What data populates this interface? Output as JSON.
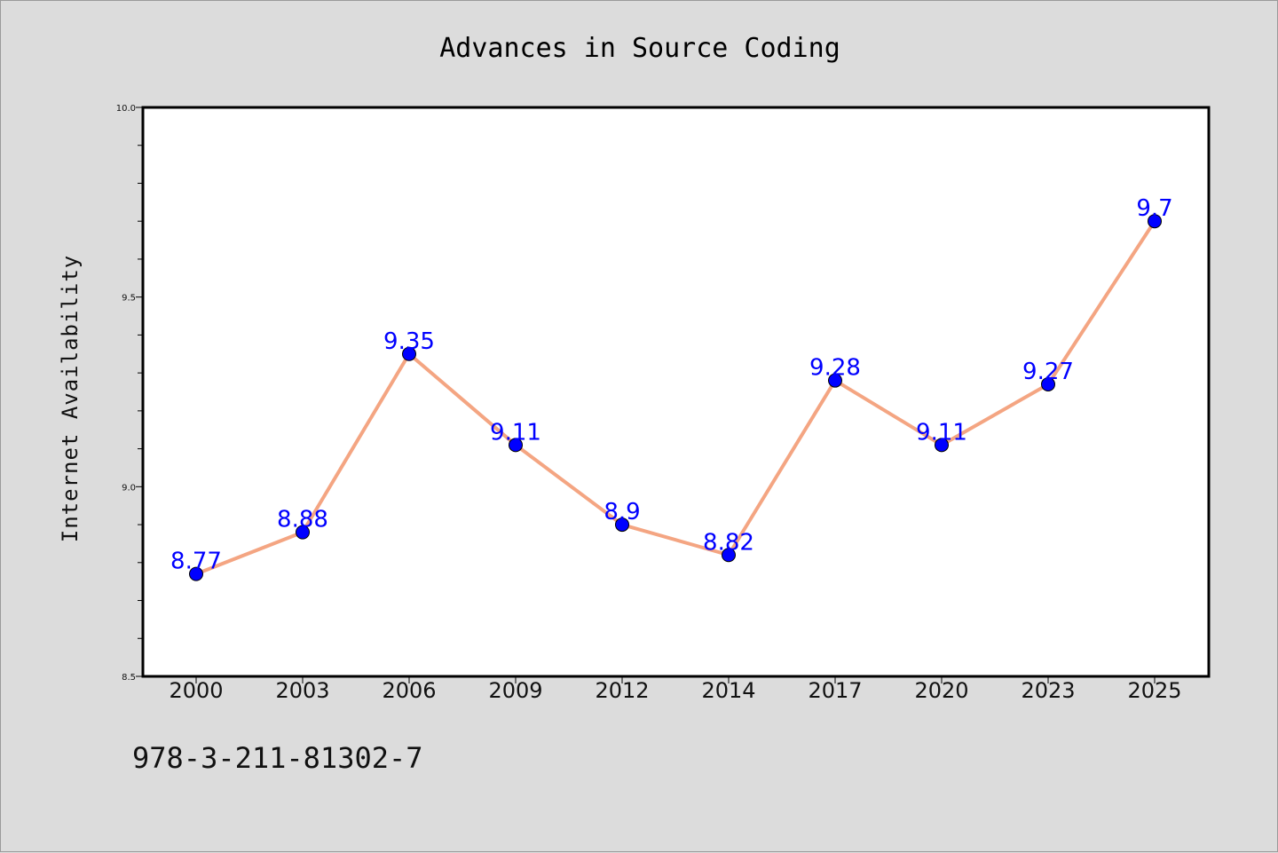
{
  "chart_data": {
    "type": "line",
    "title": "Advances in Source Coding",
    "xlabel": "",
    "ylabel": "Internet Availability",
    "categories": [
      "2000",
      "2003",
      "2006",
      "2009",
      "2012",
      "2014",
      "2017",
      "2020",
      "2023",
      "2025"
    ],
    "series": [
      {
        "values": [
          8.77,
          8.88,
          9.35,
          9.11,
          8.9,
          8.82,
          9.28,
          9.11,
          9.27,
          9.7
        ],
        "labels": [
          "8.77",
          "8.88",
          "9.35",
          "9.11",
          "8.9",
          "8.82",
          "9.28",
          "9.11",
          "9.27",
          "9.7"
        ],
        "line_color": "#f4a582",
        "marker_color": "#0000ff"
      }
    ],
    "ylim": [
      8.5,
      10.0
    ],
    "yticks": [
      "8.5",
      "9.0",
      "9.5",
      "10.0"
    ],
    "yticks_values": [
      8.5,
      9.0,
      9.5,
      10.0
    ],
    "grid": false,
    "legend": "none"
  },
  "footer_text": "978-3-211-81302-7",
  "colors": {
    "background": "#dcdcdc",
    "plot_background": "#ffffff",
    "data_label": "#0000ff"
  }
}
